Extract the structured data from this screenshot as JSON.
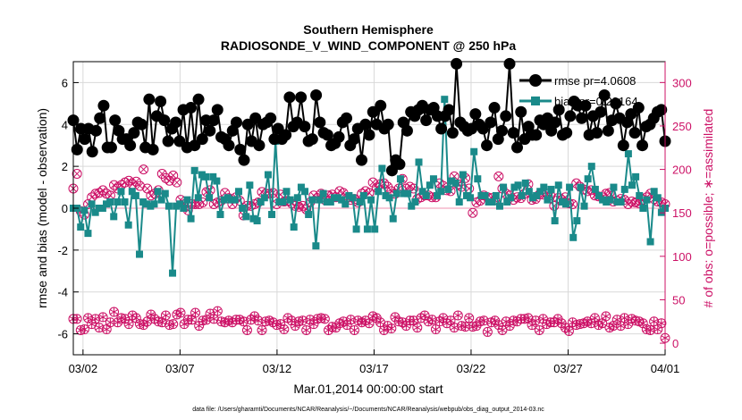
{
  "chart_data": {
    "type": "line",
    "title": "Southern Hemisphere",
    "subtitle": "RADIOSONDE_V_WIND_COMPONENT @ 250 hPa",
    "xlabel": "Mar.01,2014 00:00:00 start",
    "ylabel_left": "rmse and bias (model - observation)",
    "ylabel_right": "# of obs: o=possible; ∗=assimilated",
    "footer": "data file: /Users/gharamti/Documents/NCAR/Reanalysis/~/Documents/NCAR/Reanalysis/webpub/obs_diag_output_2014-03.nc",
    "x_tick_labels": [
      "03/02",
      "03/07",
      "03/12",
      "03/17",
      "03/22",
      "03/27",
      "04/01"
    ],
    "x_tick_days": [
      1,
      6,
      11,
      16,
      21,
      26,
      31
    ],
    "xlim": [
      0.5,
      31.0
    ],
    "ylim_left": [
      -7,
      7
    ],
    "yticks_left": [
      -6,
      -4,
      -2,
      0,
      2,
      4,
      6
    ],
    "ylim_right": [
      -13.3,
      324
    ],
    "yticks_right": [
      0,
      50,
      100,
      150,
      200,
      250,
      300
    ],
    "grid": true,
    "legend_position": "top-right",
    "colors": {
      "rmse": "#000000",
      "bias": "#1a8a8a",
      "obs": "#cc1166",
      "axes": "#000000"
    },
    "series": [
      {
        "name": "rmse",
        "legend": "rmse pr=4.0608",
        "marker": "circle",
        "values": [
          4.2,
          2.8,
          3.8,
          3.3,
          3.8,
          2.7,
          3.7,
          4.3,
          4.9,
          2.9,
          2.9,
          4.2,
          3.7,
          3.3,
          3.3,
          3.0,
          3.6,
          4.1,
          4.0,
          2.9,
          5.2,
          2.8,
          4.4,
          5.1,
          4.2,
          3.2,
          3.8,
          4.1,
          3.2,
          4.7,
          2.9,
          4.8,
          3.0,
          5.2,
          3.3,
          4.2,
          3.7,
          4.2,
          4.7,
          3.4,
          3.3,
          3.0,
          3.7,
          4.1,
          2.8,
          2.3,
          4.0,
          3.2,
          4.3,
          3.0,
          4.0,
          4.1,
          4.3,
          3.3,
          3.8,
          3.3,
          3.5,
          5.3,
          3.9,
          4.1,
          5.3,
          3.9,
          3.2,
          3.3,
          5.4,
          4.1,
          3.6,
          3.5,
          3.0,
          3.1,
          3.4,
          4.1,
          4.3,
          3.0,
          3.3,
          3.8,
          2.3,
          4.0,
          3.5,
          4.6,
          4.0,
          4.9,
          3.8,
          4.0,
          1.8,
          2.3,
          2.1,
          4.1,
          3.7,
          4.6,
          4.4,
          4.7,
          4.9,
          4.2,
          4.7,
          4.8,
          4.4,
          3.8,
          4.4,
          4.7,
          3.6,
          6.9,
          4.1,
          3.9,
          3.7,
          3.8,
          4.5,
          4.0,
          3.8,
          3.0,
          4.1,
          4.8,
          3.3,
          3.7,
          4.4,
          6.9,
          3.6,
          2.9,
          4.6,
          3.3,
          3.9,
          3.5,
          3.5,
          4.2,
          4.0,
          4.3,
          3.7,
          4.1,
          4.7,
          3.5,
          3.6,
          4.4,
          5.1,
          4.9,
          4.3,
          4.9,
          3.5,
          4.4,
          3.6,
          4.6,
          5.4,
          3.7,
          4.2,
          5.0,
          4.3,
          3.0,
          4.1,
          4.5,
          3.6,
          4.8,
          3.0,
          3.9,
          4.0,
          4.3,
          4.6,
          4.7,
          3.2
        ]
      },
      {
        "name": "bias",
        "legend": "bias pr=0.23164",
        "marker": "square",
        "values": [
          0.0,
          0.0,
          -0.9,
          -0.1,
          -1.2,
          0.2,
          -0.2,
          0.0,
          0.0,
          0.2,
          0.3,
          -0.4,
          0.3,
          0.8,
          0.3,
          -0.8,
          0.8,
          0.6,
          -2.2,
          0.3,
          0.2,
          0.1,
          0.2,
          0.8,
          0.4,
          0.7,
          0.1,
          -3.1,
          0.1,
          0.2,
          0.0,
          0.4,
          -0.5,
          1.8,
          0.5,
          1.6,
          1.5,
          0.5,
          1.5,
          1.3,
          -0.3,
          0.4,
          0.5,
          0.4,
          0.4,
          0.8,
          0.0,
          -0.4,
          1.1,
          -0.5,
          -0.6,
          0.3,
          0.5,
          1.6,
          -0.3,
          3.2,
          0.3,
          0.3,
          0.8,
          0.4,
          -0.9,
          0.5,
          1.0,
          0.8,
          -0.3,
          0.4,
          -1.8,
          0.4,
          0.7,
          0.3,
          0.3,
          0.5,
          0.5,
          0.4,
          0.2,
          0.6,
          0.5,
          -1.0,
          0.3,
          0.6,
          -1.0,
          0.4,
          -1.0,
          0.8,
          1.9,
          0.6,
          0.5,
          -0.5,
          0.7,
          1.4,
          0.7,
          0.7,
          0.1,
          0.3,
          2.2,
          0.8,
          0.6,
          1.1,
          1.4,
          0.6,
          0.8,
          5.2,
          0.9,
          1.3,
          1.2,
          0.3,
          1.6,
          0.6,
          0.5,
          2.7,
          1.4,
          0.6,
          0.6,
          0.3,
          0.3,
          0.6,
          0.1,
          1.0,
          0.3,
          0.5,
          1.0,
          1.1,
          0.6,
          1.2,
          0.8,
          0.5,
          0.6,
          0.8,
          1.0,
          0.4,
          0.9,
          -0.6,
          1.1,
          0.3,
          0.2,
          1.0,
          -1.4,
          -0.6,
          1.0,
          0.1,
          1.4,
          2.0,
          0.9,
          0.6,
          0.4,
          0.3,
          0.4,
          1.0,
          0.3,
          0.3,
          0.9,
          2.6,
          1.1,
          1.5,
          0.6,
          0.0,
          0.4,
          -1.6,
          0.8,
          0.5,
          -0.2,
          0.0
        ]
      },
      {
        "name": "obs_possible",
        "legend": "possible",
        "marker": "circle-open",
        "values": [
          178,
          195,
          152,
          148,
          160,
          168,
          172,
          173,
          176,
          172,
          170,
          182,
          178,
          182,
          185,
          187,
          183,
          186,
          181,
          200,
          178,
          170,
          172,
          176,
          195,
          190,
          187,
          193,
          185,
          165,
          160,
          153,
          160,
          160,
          160,
          162,
          174,
          176,
          160,
          162,
          164,
          173,
          167,
          160,
          168,
          164,
          147,
          158,
          158,
          160,
          162,
          174,
          172,
          172,
          173,
          160,
          171,
          163,
          164,
          161,
          158,
          157,
          158,
          154,
          162,
          170,
          167,
          172,
          165,
          170,
          171,
          168,
          175,
          173,
          167,
          165,
          166,
          162,
          172,
          175,
          173,
          185,
          179,
          183,
          184,
          180,
          175,
          172,
          178,
          189,
          178,
          180,
          178,
          166,
          168,
          170,
          170,
          168,
          168,
          184,
          181,
          176,
          175,
          192,
          183,
          180,
          190,
          178,
          150,
          162,
          164,
          170,
          168,
          167,
          165,
          192,
          178,
          172,
          170,
          165,
          168,
          167,
          172,
          183,
          165,
          166,
          171,
          171,
          172,
          170,
          158,
          167,
          165,
          168,
          161,
          160,
          184,
          180,
          177,
          175,
          176,
          170,
          169,
          168,
          172,
          173,
          163,
          164,
          166,
          165,
          160,
          163,
          162,
          161,
          165,
          168,
          172,
          166,
          163,
          162,
          160
        ]
      },
      {
        "name": "obs_assimilated",
        "legend": "assimilated",
        "marker": "star-circle",
        "values": [
          28,
          28,
          15,
          16,
          29,
          22,
          28,
          18,
          30,
          16,
          24,
          36,
          24,
          29,
          28,
          22,
          32,
          29,
          22,
          21,
          25,
          33,
          28,
          25,
          24,
          32,
          21,
          22,
          33,
          35,
          22,
          27,
          27,
          35,
          20,
          26,
          27,
          34,
          28,
          37,
          25,
          24,
          26,
          24,
          27,
          27,
          25,
          15,
          27,
          31,
          26,
          15,
          25,
          26,
          24,
          21,
          22,
          16,
          29,
          26,
          20,
          25,
          26,
          15,
          27,
          22,
          28,
          29,
          28,
          15,
          19,
          18,
          23,
          25,
          21,
          27,
          15,
          26,
          24,
          26,
          23,
          31,
          29,
          24,
          15,
          20,
          17,
          30,
          25,
          24,
          20,
          26,
          26,
          18,
          29,
          32,
          25,
          27,
          16,
          25,
          29,
          23,
          26,
          18,
          32,
          20,
          19,
          29,
          19,
          20,
          25,
          26,
          13,
          24,
          26,
          21,
          15,
          25,
          20,
          26,
          25,
          28,
          28,
          29,
          21,
          26,
          15,
          28,
          22,
          24,
          24,
          28,
          23,
          18,
          14,
          24,
          21,
          22,
          23,
          25,
          23,
          29,
          21,
          23,
          31,
          18,
          20,
          27,
          20,
          29,
          22,
          28,
          26,
          25,
          23,
          16,
          15,
          25,
          16,
          23,
          6
        ]
      }
    ]
  }
}
